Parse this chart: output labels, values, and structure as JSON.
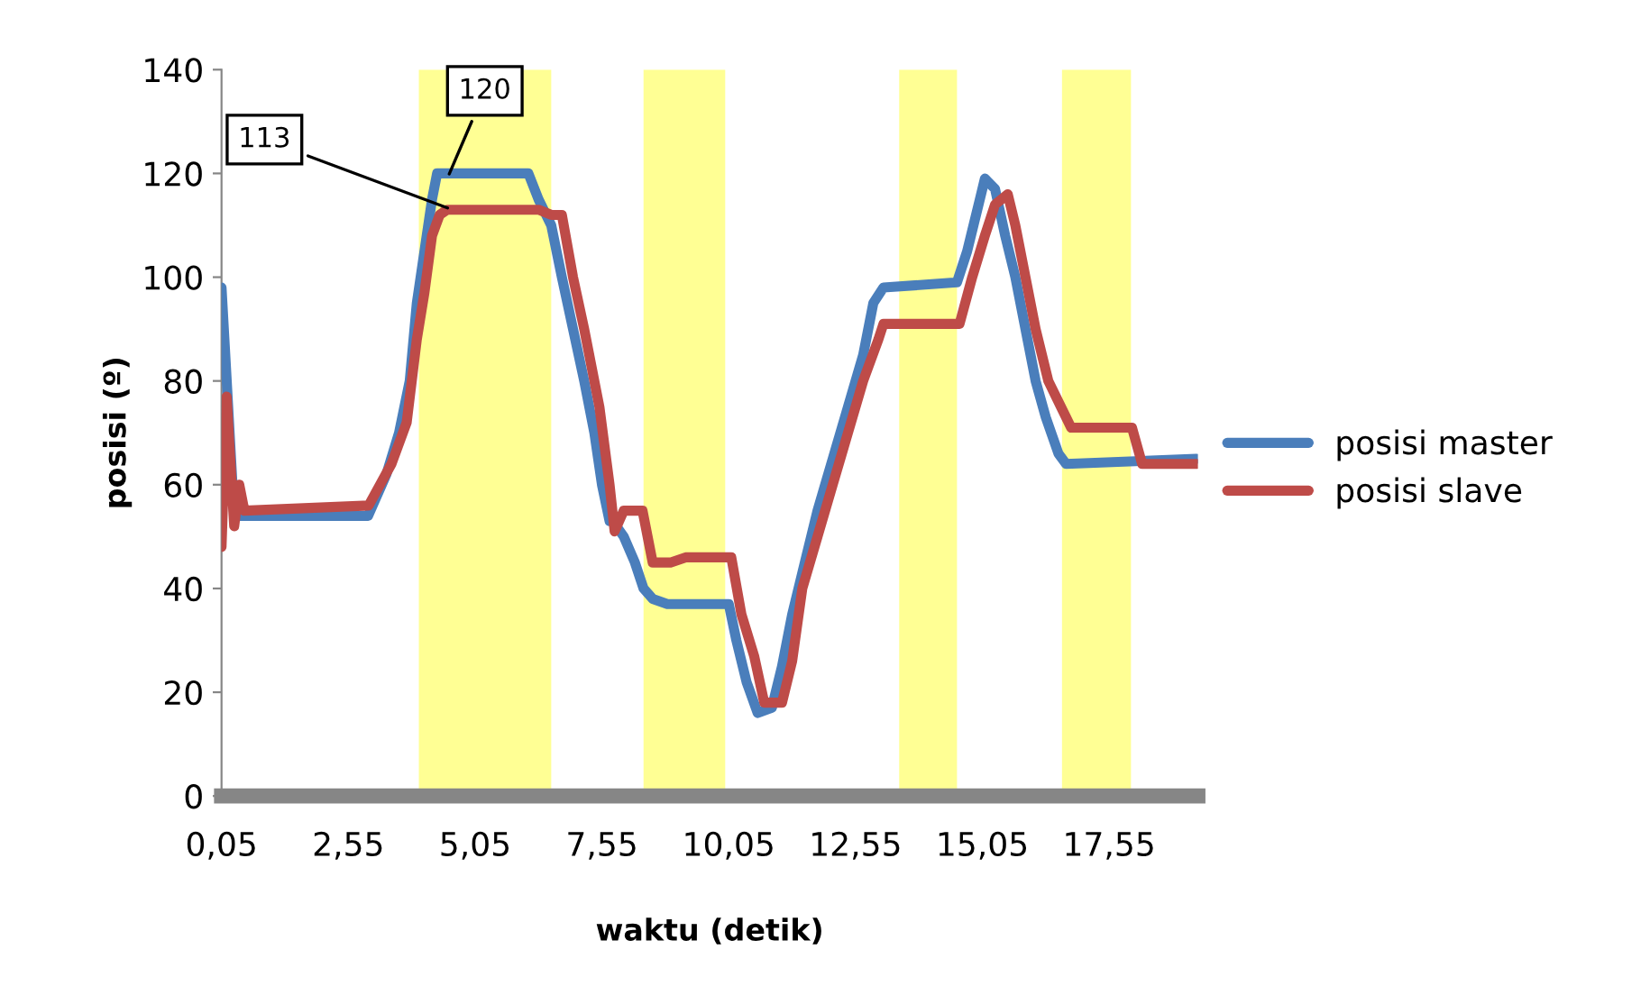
{
  "chart_data": {
    "type": "line",
    "xlabel": "waktu (detik)",
    "ylabel": "posisi (º)",
    "xlim": [
      0.05,
      19.3
    ],
    "ylim": [
      0,
      140
    ],
    "yticks": [
      0,
      20,
      40,
      60,
      80,
      100,
      120,
      140
    ],
    "xticks": [
      {
        "value": 0.05,
        "label": "0,05"
      },
      {
        "value": 2.55,
        "label": "2,55"
      },
      {
        "value": 5.05,
        "label": "5,05"
      },
      {
        "value": 7.55,
        "label": "7,55"
      },
      {
        "value": 10.05,
        "label": "10,05"
      },
      {
        "value": 12.55,
        "label": "12,55"
      },
      {
        "value": 15.05,
        "label": "15,05"
      },
      {
        "value": 17.55,
        "label": "17,55"
      }
    ],
    "grid": false,
    "legend": "right",
    "line_style": "solid",
    "marker": "none",
    "series": [
      {
        "name": "posisi master",
        "color": "#4a7ebb",
        "x": [
          0.05,
          0.3,
          2.94,
          3.3,
          3.55,
          3.76,
          3.9,
          4.05,
          4.2,
          4.3,
          6.1,
          6.3,
          6.55,
          6.76,
          6.98,
          7.2,
          7.4,
          7.55,
          7.7,
          7.76,
          7.98,
          8.2,
          8.37,
          8.55,
          8.84,
          10.05,
          10.2,
          10.4,
          10.62,
          10.9,
          11.1,
          11.3,
          11.55,
          11.8,
          12.1,
          12.4,
          12.7,
          12.9,
          13.1,
          14.55,
          14.75,
          15.0,
          15.1,
          15.3,
          15.5,
          15.7,
          15.9,
          16.1,
          16.3,
          16.55,
          16.7,
          19.27
        ],
        "values": [
          98,
          54,
          54,
          62,
          70,
          80,
          95,
          105,
          115,
          120,
          120,
          115,
          110,
          100,
          90,
          80,
          70,
          60,
          53,
          53,
          50,
          45,
          40,
          38,
          37,
          37,
          30,
          22,
          16,
          17,
          25,
          35,
          45,
          55,
          65,
          75,
          85,
          95,
          98,
          99,
          105,
          115,
          119,
          117,
          108,
          100,
          90,
          80,
          73,
          66,
          64,
          65
        ]
      },
      {
        "name": "posisi slave",
        "color": "#be4b48",
        "x": [
          0.05,
          0.15,
          0.3,
          0.4,
          0.5,
          2.95,
          3.4,
          3.7,
          3.9,
          4.05,
          4.2,
          4.35,
          4.5,
          6.3,
          6.55,
          6.76,
          6.98,
          7.2,
          7.5,
          7.7,
          7.8,
          7.98,
          8.35,
          8.55,
          8.9,
          9.2,
          10.1,
          10.3,
          10.55,
          10.75,
          11.1,
          11.3,
          11.5,
          11.8,
          12.1,
          12.4,
          12.7,
          13.0,
          13.1,
          14.6,
          14.85,
          15.1,
          15.3,
          15.55,
          15.7,
          15.9,
          16.1,
          16.35,
          16.6,
          16.8,
          18.0,
          18.2,
          19.27
        ],
        "values": [
          48,
          77,
          52,
          60,
          55,
          56,
          64,
          72,
          88,
          97,
          108,
          112,
          113,
          113,
          112,
          112,
          100,
          90,
          75,
          60,
          51,
          55,
          55,
          45,
          45,
          46,
          46,
          35,
          27,
          18,
          18,
          26,
          40,
          50,
          60,
          70,
          80,
          88,
          91,
          91,
          100,
          108,
          114,
          116,
          110,
          100,
          90,
          80,
          75,
          71,
          71,
          64,
          64
        ]
      }
    ],
    "bands": [
      {
        "axis": "x",
        "from": 3.94,
        "to": 6.55,
        "color": "#ffff66"
      },
      {
        "axis": "x",
        "from": 8.37,
        "to": 9.98,
        "color": "#ffff66"
      },
      {
        "axis": "x",
        "from": 13.41,
        "to": 14.55,
        "color": "#ffff66"
      },
      {
        "axis": "x",
        "from": 16.62,
        "to": 17.98,
        "color": "#ffff66"
      }
    ],
    "annotations": [
      {
        "text": "113",
        "x": 4.6,
        "y": 113
      },
      {
        "text": "120",
        "x": 4.5,
        "y": 119
      }
    ]
  }
}
